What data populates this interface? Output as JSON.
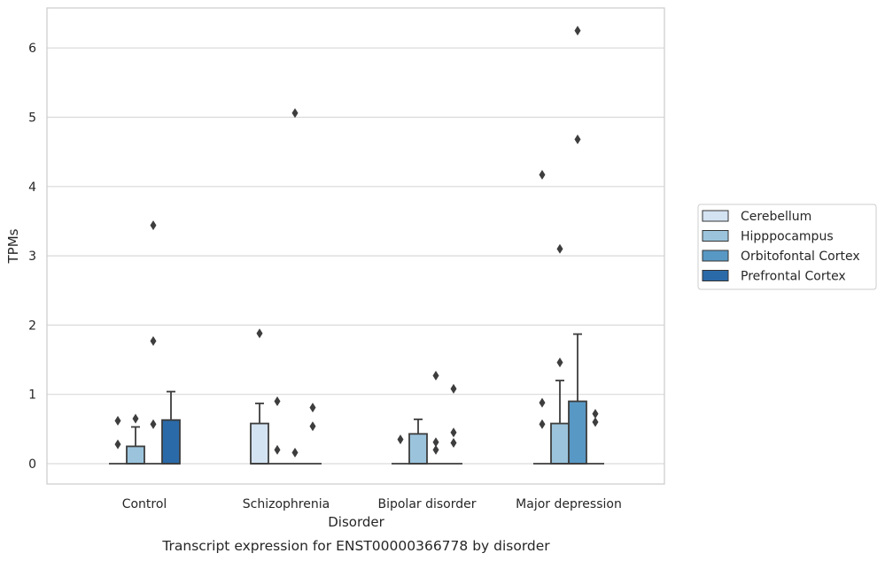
{
  "chart_data": {
    "type": "box",
    "caption": "Transcript expression for ENST00000366778 by disorder",
    "xlabel": "Disorder",
    "ylabel": "TPMs",
    "ylim": [
      -0.3,
      6.6
    ],
    "yticks": [
      0,
      1,
      2,
      3,
      4,
      5,
      6
    ],
    "grid": true,
    "legend_position": "right",
    "categories": [
      "Control",
      "Schizophrenia",
      "Bipolar disorder",
      "Major depression"
    ],
    "series": [
      {
        "name": "Cerebellum",
        "color": "#d4e3f2",
        "boxes": [
          {
            "q1": 0,
            "median": 0,
            "q3": 0,
            "whisker_low": 0,
            "whisker_high": 0,
            "outliers": [
              0.28,
              0.62
            ]
          },
          {
            "q1": 0,
            "median": 0,
            "q3": 0.58,
            "whisker_low": 0,
            "whisker_high": 0.87,
            "outliers": [
              1.88
            ]
          },
          {
            "q1": 0,
            "median": 0,
            "q3": 0,
            "whisker_low": 0,
            "whisker_high": 0,
            "outliers": [
              0.35
            ]
          },
          {
            "q1": 0,
            "median": 0,
            "q3": 0,
            "whisker_low": 0,
            "whisker_high": 0,
            "outliers": [
              0.57,
              0.88,
              4.17
            ]
          }
        ]
      },
      {
        "name": "Hipppocampus",
        "color": "#9bc4dc",
        "boxes": [
          {
            "q1": 0,
            "median": 0,
            "q3": 0.25,
            "whisker_low": 0,
            "whisker_high": 0.53,
            "outliers": [
              0.65
            ]
          },
          {
            "q1": 0,
            "median": 0,
            "q3": 0,
            "whisker_low": 0,
            "whisker_high": 0,
            "outliers": [
              0.2,
              0.9
            ]
          },
          {
            "q1": 0,
            "median": 0,
            "q3": 0.43,
            "whisker_low": 0,
            "whisker_high": 0.64,
            "outliers": []
          },
          {
            "q1": 0,
            "median": 0,
            "q3": 0.58,
            "whisker_low": 0,
            "whisker_high": 1.2,
            "outliers": [
              1.46,
              3.1
            ]
          }
        ]
      },
      {
        "name": "Orbitofontal Cortex",
        "color": "#5898c5",
        "boxes": [
          {
            "q1": 0,
            "median": 0,
            "q3": 0,
            "whisker_low": 0,
            "whisker_high": 0,
            "outliers": [
              0.57,
              1.77,
              3.44
            ]
          },
          {
            "q1": 0,
            "median": 0,
            "q3": 0,
            "whisker_low": 0,
            "whisker_high": 0,
            "outliers": [
              0.16,
              5.06
            ]
          },
          {
            "q1": 0,
            "median": 0,
            "q3": 0,
            "whisker_low": 0,
            "whisker_high": 0,
            "outliers": [
              0.2,
              0.31,
              1.27
            ]
          },
          {
            "q1": 0,
            "median": 0,
            "q3": 0.9,
            "whisker_low": 0,
            "whisker_high": 1.87,
            "outliers": [
              4.68,
              6.25
            ]
          }
        ]
      },
      {
        "name": "Prefrontal Cortex",
        "color": "#2b6aa9",
        "boxes": [
          {
            "q1": 0,
            "median": 0,
            "q3": 0.63,
            "whisker_low": 0,
            "whisker_high": 1.04,
            "outliers": []
          },
          {
            "q1": 0,
            "median": 0,
            "q3": 0,
            "whisker_low": 0,
            "whisker_high": 0,
            "outliers": [
              0.54,
              0.81
            ]
          },
          {
            "q1": 0,
            "median": 0,
            "q3": 0,
            "whisker_low": 0,
            "whisker_high": 0,
            "outliers": [
              0.3,
              0.45,
              1.08
            ]
          },
          {
            "q1": 0,
            "median": 0,
            "q3": 0,
            "whisker_low": 0,
            "whisker_high": 0,
            "outliers": [
              0.6,
              0.72
            ]
          }
        ]
      }
    ]
  }
}
